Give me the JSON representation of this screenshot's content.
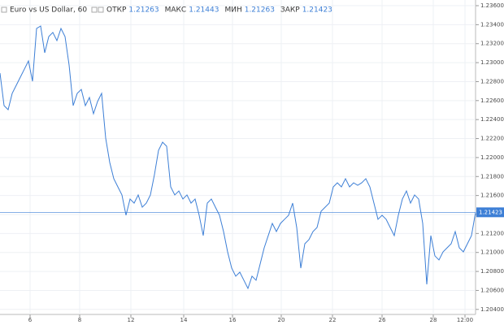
{
  "chart_data": {
    "type": "line",
    "title": "Euro vs US Dollar, 60",
    "stats": [
      {
        "name": "ОТКР",
        "value": "1.21263"
      },
      {
        "name": "МАКС",
        "value": "1.21443"
      },
      {
        "name": "МИН",
        "value": "1.21263"
      },
      {
        "name": "ЗАКР",
        "value": "1.21423"
      }
    ],
    "x": [
      0,
      1,
      2,
      3,
      4,
      5,
      6,
      7,
      8,
      9,
      10,
      11,
      12,
      13,
      14,
      15,
      16,
      17,
      18,
      19,
      20,
      21,
      22,
      23,
      24,
      25,
      26,
      27,
      28,
      29,
      30,
      31,
      32,
      33,
      34,
      35,
      36,
      37,
      38,
      39,
      40,
      41,
      42,
      43,
      44,
      45,
      46,
      47,
      48,
      49,
      50,
      51,
      52,
      53,
      54,
      55,
      56,
      57,
      58,
      59,
      60,
      61,
      62,
      63,
      64,
      65,
      66,
      67,
      68,
      69,
      70,
      71,
      72,
      73,
      74,
      75,
      76,
      77,
      78,
      79,
      80,
      81,
      82,
      83,
      84,
      85,
      86,
      87,
      88,
      89,
      90,
      91,
      92,
      93,
      94,
      95,
      96,
      97,
      98,
      99,
      100,
      101,
      102,
      103,
      104,
      105,
      106,
      107,
      108,
      109,
      110,
      111,
      112,
      113,
      114,
      115,
      116,
      117
    ],
    "series": [
      {
        "name": "EURUSD",
        "color": "#3d7fd6",
        "values": [
          1.2289,
          1.22547,
          1.22504,
          1.22676,
          1.22761,
          1.22847,
          1.22932,
          1.23018,
          1.22804,
          1.2336,
          1.23386,
          1.23104,
          1.23275,
          1.23318,
          1.23232,
          1.2336,
          1.23275,
          1.22975,
          1.22547,
          1.22676,
          1.22718,
          1.22547,
          1.22633,
          1.22462,
          1.2259,
          1.22676,
          1.22205,
          1.21948,
          1.21777,
          1.21691,
          1.21606,
          1.21392,
          1.21563,
          1.2152,
          1.21606,
          1.21477,
          1.2152,
          1.21606,
          1.2182,
          1.22076,
          1.22162,
          1.22119,
          1.21691,
          1.21606,
          1.21648,
          1.21563,
          1.21606,
          1.2152,
          1.21563,
          1.21392,
          1.21178,
          1.2152,
          1.21563,
          1.21477,
          1.21392,
          1.2122,
          1.21006,
          1.20835,
          1.2075,
          1.20792,
          1.20707,
          1.20621,
          1.2075,
          1.20707,
          1.20878,
          1.21049,
          1.21178,
          1.21306,
          1.2122,
          1.21306,
          1.21349,
          1.21392,
          1.2152,
          1.21263,
          1.20835,
          1.21092,
          1.21135,
          1.2122,
          1.21263,
          1.21434,
          1.21477,
          1.2152,
          1.21691,
          1.21734,
          1.21691,
          1.21777,
          1.21691,
          1.21734,
          1.21708,
          1.21734,
          1.21777,
          1.21691,
          1.2152,
          1.21349,
          1.21392,
          1.21349,
          1.21263,
          1.21178,
          1.21392,
          1.21563,
          1.21648,
          1.2152,
          1.21606,
          1.21563,
          1.21306,
          1.20664,
          1.21178,
          1.20964,
          1.20921,
          1.21006,
          1.21049,
          1.21092,
          1.2122,
          1.21049,
          1.21006,
          1.21092,
          1.21178,
          1.21423
        ]
      }
    ],
    "xlim": [
      0,
      117
    ],
    "xticks": [
      {
        "value": 7.4,
        "label": "6"
      },
      {
        "value": 19.6,
        "label": "8"
      },
      {
        "value": 32.2,
        "label": "12"
      },
      {
        "value": 45.2,
        "label": "14"
      },
      {
        "value": 57.2,
        "label": "16"
      },
      {
        "value": 69.2,
        "label": "20"
      },
      {
        "value": 81.8,
        "label": "22"
      },
      {
        "value": 94,
        "label": "26"
      },
      {
        "value": 106.6,
        "label": "28"
      },
      {
        "value": 114.4,
        "label": "12:00"
      }
    ],
    "ylim": [
      1.20347,
      1.2366
    ],
    "yticks": [
      {
        "value": 1.236,
        "label": "1.23600"
      },
      {
        "value": 1.234,
        "label": "1.23400"
      },
      {
        "value": 1.232,
        "label": "1.23200"
      },
      {
        "value": 1.23,
        "label": "1.23000"
      },
      {
        "value": 1.228,
        "label": "1.22800"
      },
      {
        "value": 1.226,
        "label": "1.22600"
      },
      {
        "value": 1.224,
        "label": "1.22400"
      },
      {
        "value": 1.222,
        "label": "1.22200"
      },
      {
        "value": 1.22,
        "label": "1.22000"
      },
      {
        "value": 1.218,
        "label": "1.21800"
      },
      {
        "value": 1.216,
        "label": "1.21600"
      },
      {
        "value": 1.214,
        "label": "1.21400"
      },
      {
        "value": 1.212,
        "label": "1.21200"
      },
      {
        "value": 1.21,
        "label": "1.21000"
      },
      {
        "value": 1.208,
        "label": "1.20800"
      },
      {
        "value": 1.206,
        "label": "1.20600"
      },
      {
        "value": 1.204,
        "label": "1.20400"
      }
    ],
    "last_price": {
      "value": 1.21423,
      "label": "1.21423"
    },
    "grid": true
  }
}
